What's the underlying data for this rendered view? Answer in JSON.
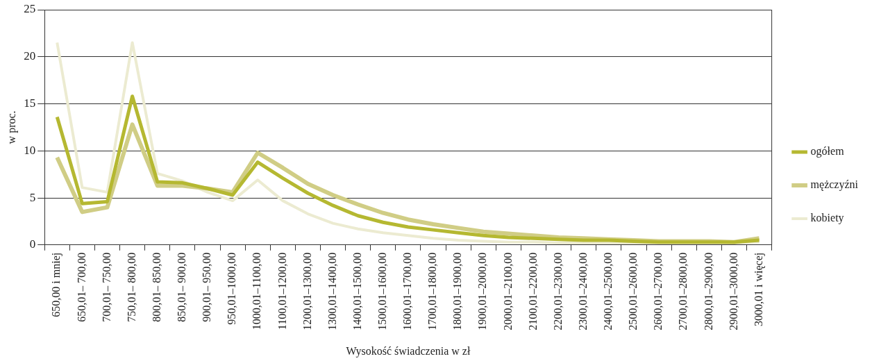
{
  "chart_data": {
    "type": "line",
    "xlabel": "Wysokość świadczenia w zł",
    "ylabel": "w proc.",
    "categories": [
      "650,00 i mniej",
      "650,01– 700,00",
      "700,01– 750,00",
      "750,01– 800,00",
      "800,01– 850,00",
      "850,01– 900,00",
      "900,01– 950,00",
      "950,01–1000,00",
      "1000,01–1100,00",
      "1100,01–1200,00",
      "1200,01–1300,00",
      "1300,01–1400,00",
      "1400,01–1500,00",
      "1500,01–1600,00",
      "1600,01–1700,00",
      "1700,01–1800,00",
      "1800,01–1900,00",
      "1900,01–2000,00",
      "2000,01–2100,00",
      "2100,01–2200,00",
      "2200,01–2300,00",
      "2300,01–2400,00",
      "2400,01–2500,00",
      "2500,01–2600,00",
      "2600,01–2700,00",
      "2700,01–2800,00",
      "2800,01–2900,00",
      "2900,01–3000,00",
      "3000,01 i więcej"
    ],
    "series": [
      {
        "name": "ogółem",
        "color": "#b5b831",
        "values": [
          13.6,
          4.4,
          4.6,
          15.8,
          6.7,
          6.6,
          6.0,
          5.3,
          8.8,
          7.1,
          5.5,
          4.2,
          3.1,
          2.4,
          1.9,
          1.6,
          1.3,
          1.0,
          0.8,
          0.7,
          0.6,
          0.5,
          0.5,
          0.4,
          0.3,
          0.3,
          0.3,
          0.3,
          0.5
        ]
      },
      {
        "name": "mężczyźni",
        "color": "#d0cd85",
        "values": [
          9.3,
          3.5,
          4.0,
          12.8,
          6.3,
          6.3,
          6.0,
          5.6,
          9.8,
          8.2,
          6.5,
          5.3,
          4.3,
          3.4,
          2.7,
          2.2,
          1.8,
          1.4,
          1.2,
          1.0,
          0.8,
          0.7,
          0.6,
          0.5,
          0.4,
          0.4,
          0.4,
          0.3,
          0.7
        ]
      },
      {
        "name": "kobiety",
        "color": "#ecebd1",
        "values": [
          21.5,
          6.1,
          5.6,
          21.5,
          7.6,
          6.8,
          5.6,
          4.7,
          6.9,
          4.7,
          3.3,
          2.3,
          1.7,
          1.3,
          1.0,
          0.7,
          0.5,
          0.4,
          0.3,
          0.3,
          0.2,
          0.2,
          0.2,
          0.2,
          0.2,
          0.2,
          0.2,
          0.2,
          0.3
        ]
      }
    ],
    "ylim": [
      0,
      25
    ],
    "yticks": [
      0,
      5,
      10,
      15,
      20,
      25
    ],
    "grid": "y",
    "legend": "right",
    "marker": "none",
    "line_style": "solid"
  }
}
